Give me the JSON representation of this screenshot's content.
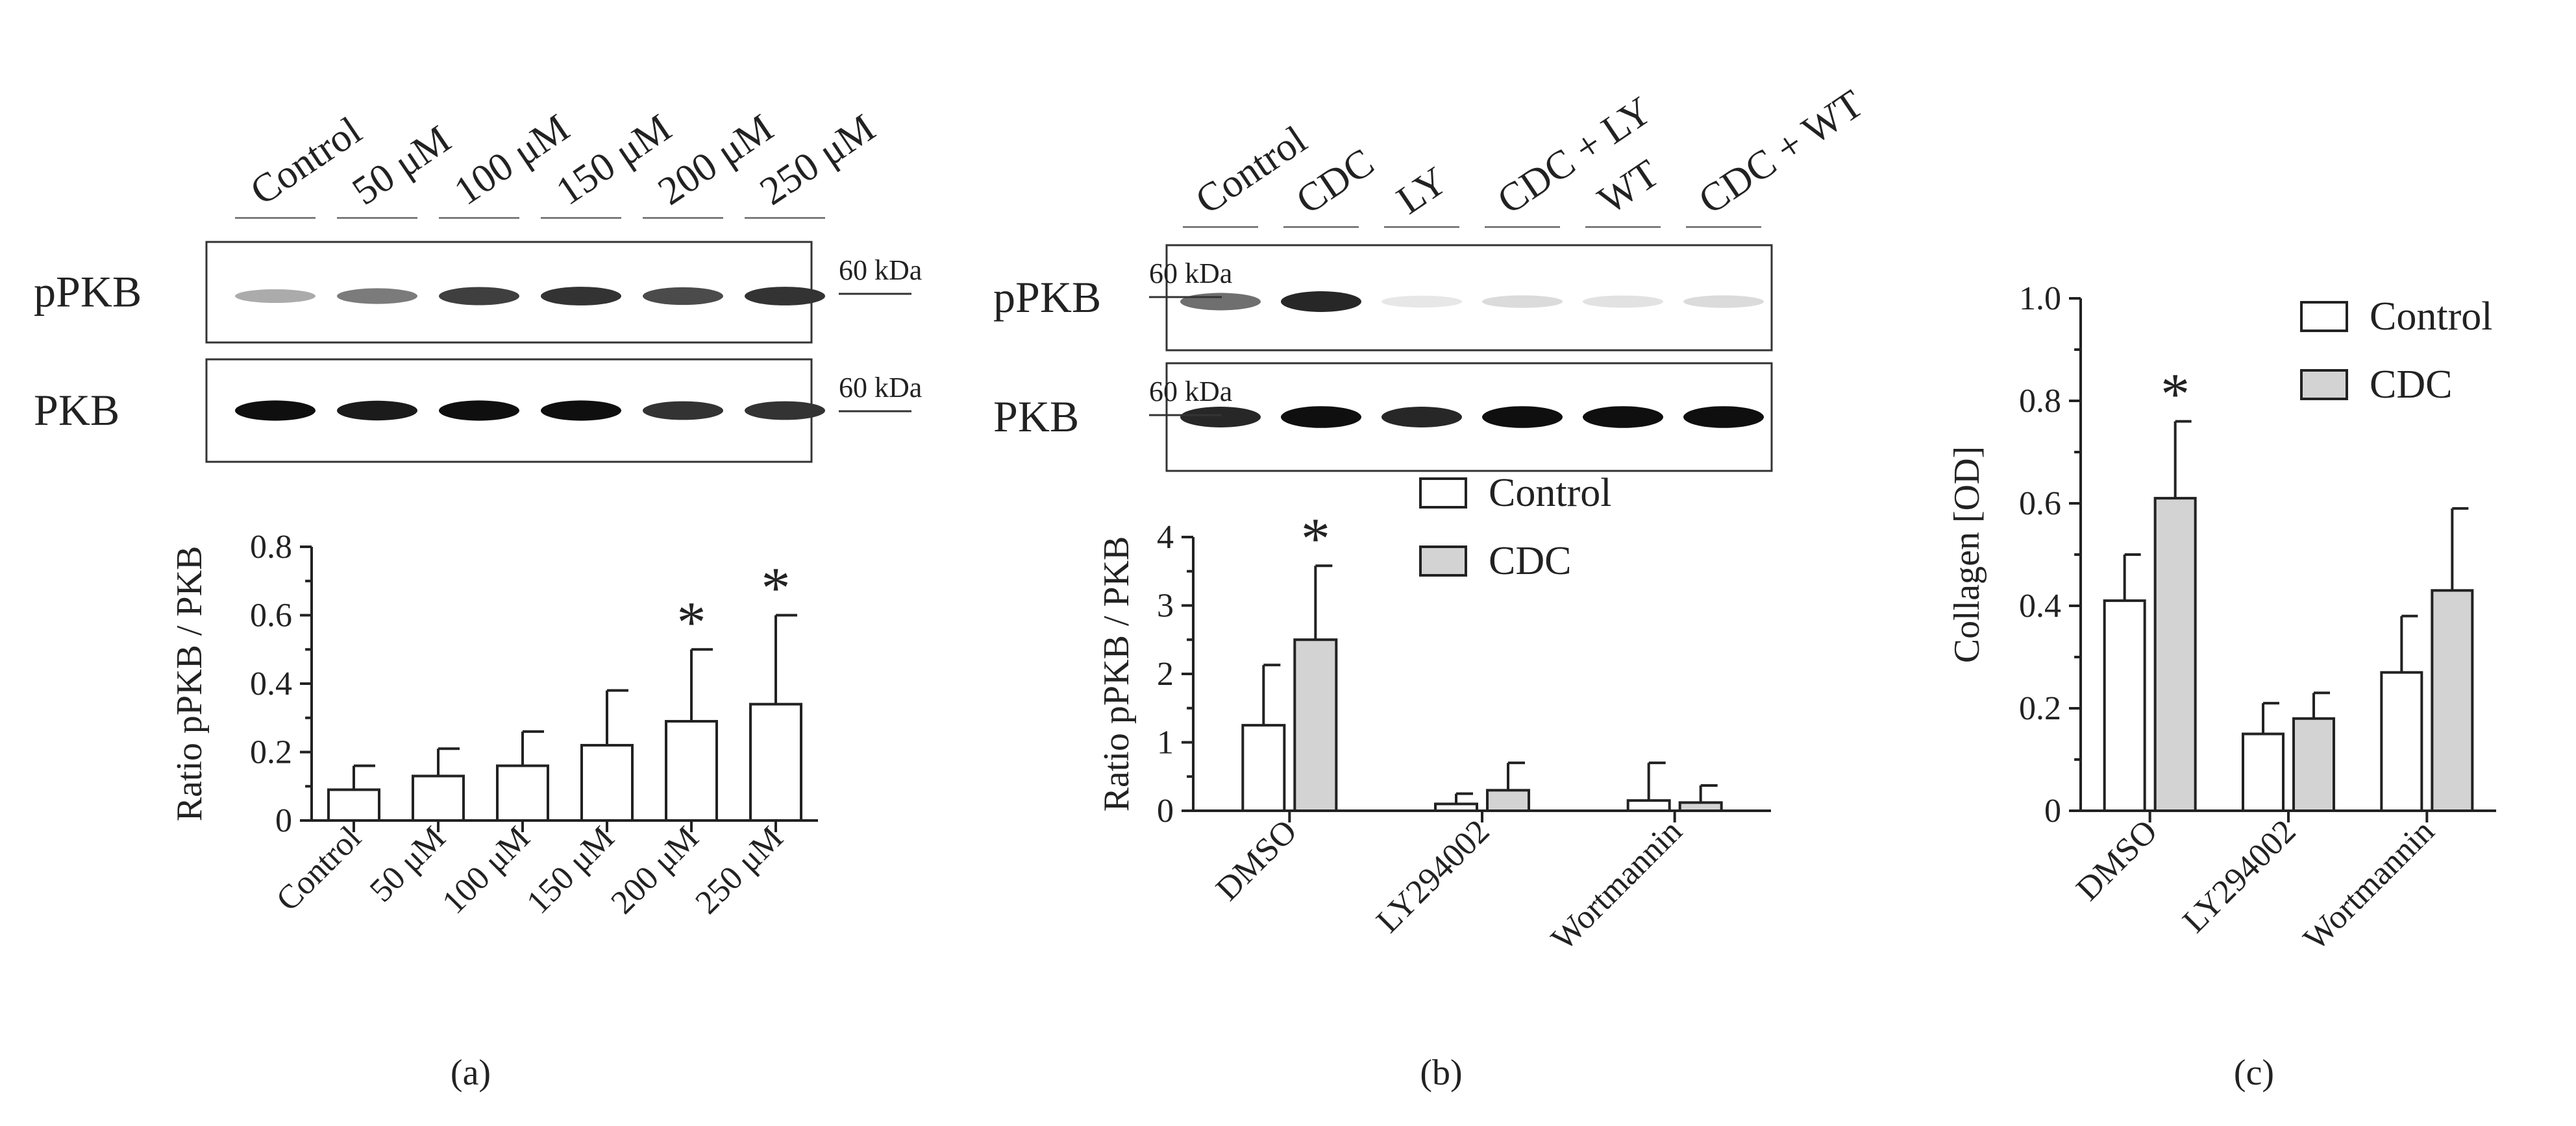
{
  "panels": [
    {
      "id": "a",
      "panel_label": "(a)",
      "blot": {
        "lanes": [
          "Control",
          "50 μM",
          "100 μM",
          "150 μM",
          "200 μM",
          "250 μM"
        ],
        "rows": [
          {
            "label": "pPKB",
            "marker": "60 kDa",
            "intensity": [
              0.35,
              0.55,
              0.8,
              0.85,
              0.75,
              0.85
            ]
          },
          {
            "label": "PKB",
            "marker": "60 kDa",
            "intensity": [
              1.0,
              0.95,
              1.0,
              1.0,
              0.85,
              0.85
            ]
          }
        ]
      }
    },
    {
      "id": "b",
      "panel_label": "(b)",
      "blot": {
        "lanes": [
          "Control",
          "CDC",
          "LY",
          "CDC + LY",
          "WT",
          "CDC + WT"
        ],
        "rows": [
          {
            "label": "pPKB",
            "marker": "60 kDa",
            "intensity": [
              0.6,
              0.9,
              0.1,
              0.15,
              0.12,
              0.15
            ]
          },
          {
            "label": "PKB",
            "marker": "60 kDa",
            "intensity": [
              0.9,
              1.0,
              0.9,
              1.0,
              1.0,
              1.0
            ]
          }
        ]
      }
    },
    {
      "id": "c",
      "panel_label": "(c)"
    }
  ],
  "chart_data": [
    {
      "panel": "a",
      "type": "bar",
      "categories": [
        "Control",
        "50 μM",
        "100 μM",
        "150 μM",
        "200 μM",
        "250 μM"
      ],
      "series": [
        {
          "values": [
            0.09,
            0.13,
            0.16,
            0.22,
            0.29,
            0.34
          ],
          "error": [
            0.07,
            0.08,
            0.1,
            0.16,
            0.21,
            0.26
          ],
          "significance": [
            "",
            "",
            "",
            "",
            "*",
            "*"
          ]
        }
      ],
      "xlabel": "",
      "ylabel": "Ratio pPKB / PKB",
      "ylim": [
        0,
        0.8
      ],
      "yticks": [
        "0",
        "0.2",
        "0.4",
        "0.6",
        "0.8"
      ],
      "colors": [
        "#ffffff"
      ],
      "grid": false
    },
    {
      "panel": "b",
      "type": "bar",
      "categories": [
        "DMSO",
        "LY294002",
        "Wortmannin"
      ],
      "series": [
        {
          "name": "Control",
          "values": [
            1.25,
            0.1,
            0.15
          ],
          "error": [
            0.88,
            0.15,
            0.55
          ],
          "significance": [
            "",
            "",
            ""
          ]
        },
        {
          "name": "CDC",
          "values": [
            2.5,
            0.3,
            0.12
          ],
          "error": [
            1.08,
            0.4,
            0.25
          ],
          "significance": [
            "*",
            "",
            ""
          ]
        }
      ],
      "xlabel": "",
      "ylabel": "Ratio pPKB / PKB",
      "ylim": [
        0,
        4
      ],
      "yticks": [
        "0",
        "1",
        "2",
        "3",
        "4"
      ],
      "legend": "top-right",
      "colors": [
        "#ffffff",
        "#d3d3d3"
      ],
      "grid": false
    },
    {
      "panel": "c",
      "type": "bar",
      "categories": [
        "DMSO",
        "LY294002",
        "Wortmannin"
      ],
      "series": [
        {
          "name": "Control",
          "values": [
            0.41,
            0.15,
            0.27
          ],
          "error": [
            0.09,
            0.06,
            0.11
          ],
          "significance": [
            "",
            "",
            ""
          ]
        },
        {
          "name": "CDC",
          "values": [
            0.61,
            0.18,
            0.43
          ],
          "error": [
            0.15,
            0.05,
            0.16
          ],
          "significance": [
            "*",
            "",
            ""
          ]
        }
      ],
      "xlabel": "",
      "ylabel": "Collagen [OD]",
      "ylim": [
        0,
        1.0
      ],
      "yticks": [
        "0",
        "0.2",
        "0.4",
        "0.6",
        "0.8",
        "1.0"
      ],
      "legend": "top-right",
      "colors": [
        "#ffffff",
        "#d3d3d3"
      ],
      "grid": false
    }
  ]
}
